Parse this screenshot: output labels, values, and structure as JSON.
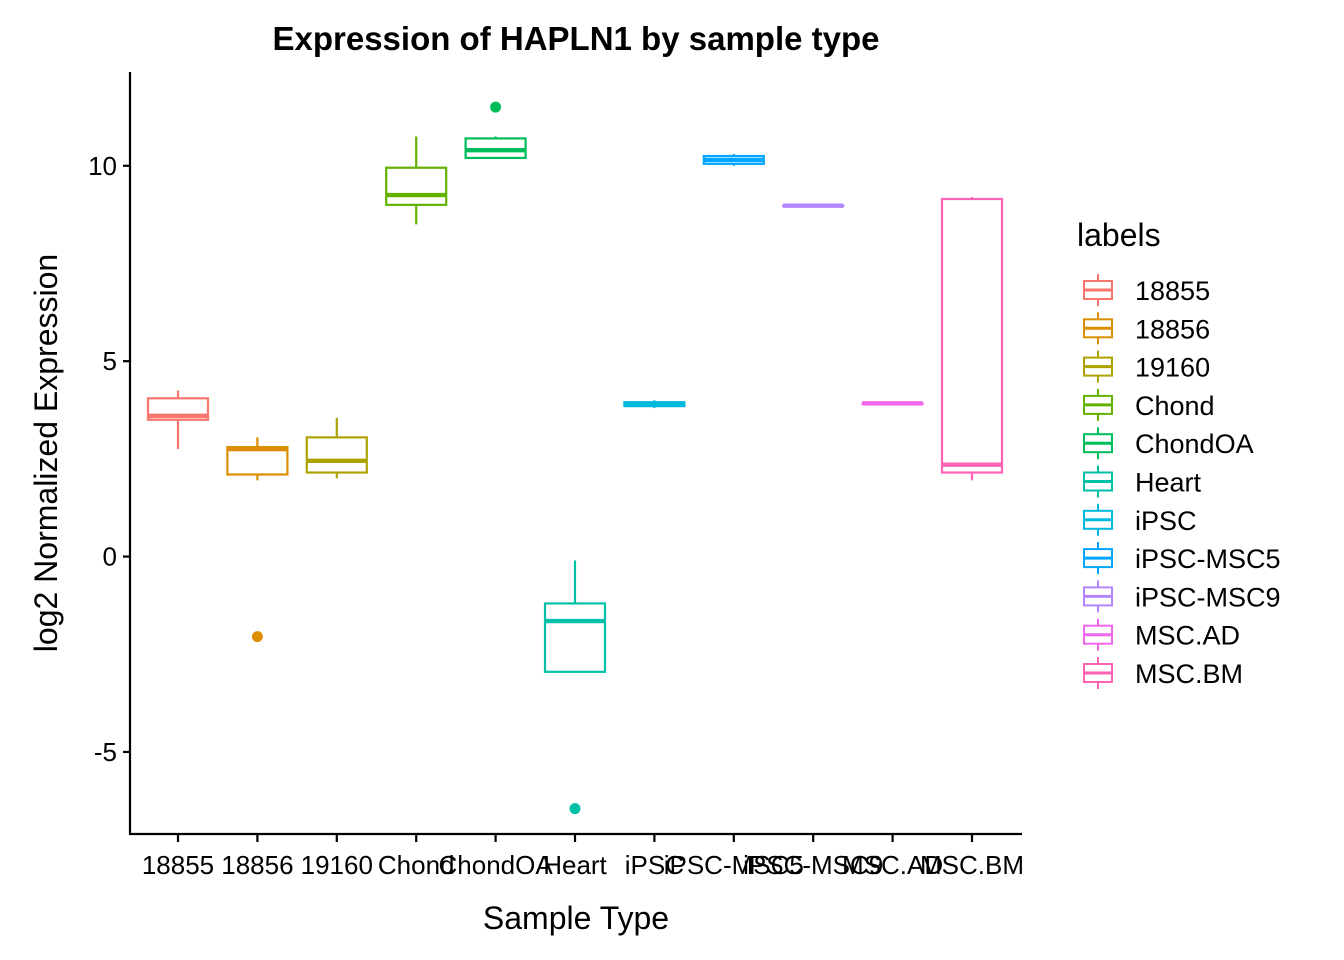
{
  "chart_data": {
    "type": "box",
    "title": "Expression of HAPLN1 by sample type",
    "xlabel": "Sample Type",
    "ylabel": "log2 Normalized Expression",
    "ylim": [
      -7.1,
      12.4
    ],
    "yticks": [
      -5,
      0,
      5,
      10
    ],
    "ytick_labels": [
      "-5",
      "0",
      "5",
      "10"
    ],
    "grid": false,
    "legend": {
      "title": "labels",
      "position": "right"
    },
    "categories": [
      "18855",
      "18856",
      "19160",
      "Chond",
      "ChondOA",
      "Heart",
      "iPSC",
      "iPSC-MSC5",
      "iPSC-MSC9",
      "MSC.AD",
      "MSC.BM"
    ],
    "colors": [
      "#F8766D",
      "#DB8E00",
      "#AEA200",
      "#64B200",
      "#00BD5C",
      "#00C1A7",
      "#00BADE",
      "#00A6FF",
      "#B385FF",
      "#EF67EB",
      "#FF63B6"
    ],
    "boxes": [
      {
        "label": "18855",
        "whisker_low": 2.75,
        "q1": 3.5,
        "median": 3.6,
        "q3": 4.05,
        "whisker_high": 4.25,
        "outliers": []
      },
      {
        "label": "18856",
        "whisker_low": 1.95,
        "q1": 2.1,
        "median": 2.75,
        "q3": 2.8,
        "whisker_high": 3.05,
        "outliers": [
          -2.05
        ]
      },
      {
        "label": "19160",
        "whisker_low": 2.0,
        "q1": 2.15,
        "median": 2.45,
        "q3": 3.05,
        "whisker_high": 3.55,
        "outliers": []
      },
      {
        "label": "Chond",
        "whisker_low": 8.5,
        "q1": 9.0,
        "median": 9.25,
        "q3": 9.95,
        "whisker_high": 10.75,
        "outliers": []
      },
      {
        "label": "ChondOA",
        "whisker_low": 10.2,
        "q1": 10.2,
        "median": 10.4,
        "q3": 10.7,
        "whisker_high": 10.75,
        "outliers": [
          11.5
        ]
      },
      {
        "label": "Heart",
        "whisker_low": -2.95,
        "q1": -2.95,
        "median": -1.65,
        "q3": -1.2,
        "whisker_high": -0.1,
        "outliers": [
          -6.45
        ]
      },
      {
        "label": "iPSC",
        "whisker_low": 3.8,
        "q1": 3.85,
        "median": 3.9,
        "q3": 3.95,
        "whisker_high": 4.0,
        "outliers": []
      },
      {
        "label": "iPSC-MSC5",
        "whisker_low": 10.0,
        "q1": 10.05,
        "median": 10.15,
        "q3": 10.25,
        "whisker_high": 10.3,
        "outliers": []
      },
      {
        "label": "iPSC-MSC9",
        "whisker_low": 8.98,
        "q1": 8.98,
        "median": 8.98,
        "q3": 8.98,
        "whisker_high": 8.98,
        "outliers": []
      },
      {
        "label": "MSC.AD",
        "whisker_low": 3.92,
        "q1": 3.92,
        "median": 3.92,
        "q3": 3.92,
        "whisker_high": 3.92,
        "outliers": []
      },
      {
        "label": "MSC.BM",
        "whisker_low": 1.95,
        "q1": 2.15,
        "median": 2.35,
        "q3": 9.15,
        "whisker_high": 9.2,
        "outliers": []
      }
    ]
  }
}
